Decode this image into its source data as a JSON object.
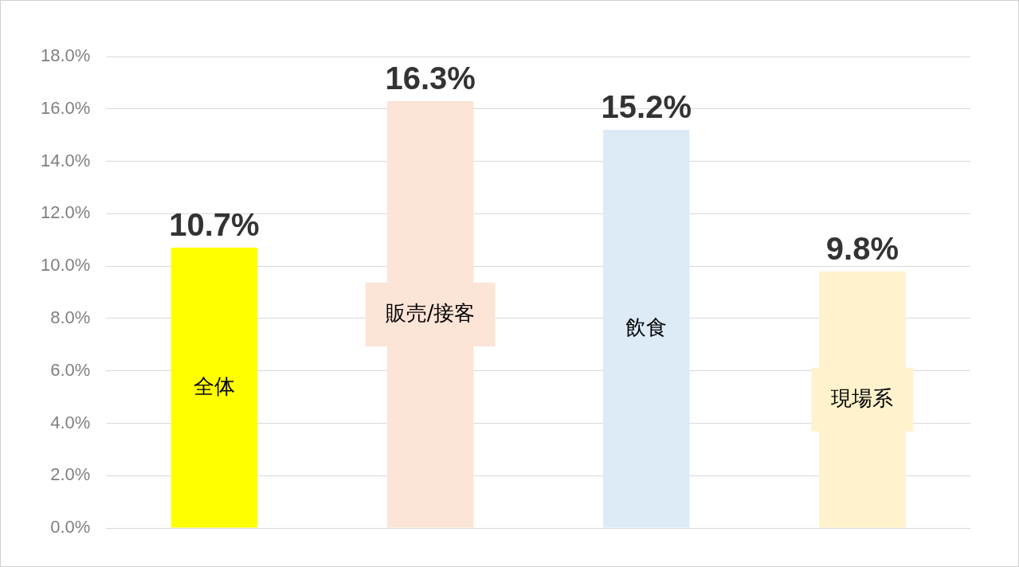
{
  "chart_data": {
    "type": "bar",
    "categories": [
      "全体",
      "販売/接客",
      "飲食",
      "現場系"
    ],
    "values": [
      10.7,
      16.3,
      15.2,
      9.8
    ],
    "colors": [
      "#ffff00",
      "#fce4d6",
      "#ddebf7",
      "#fff2cc"
    ],
    "value_labels": [
      "10.7%",
      "16.3%",
      "15.2%",
      "9.8%"
    ],
    "ylim": [
      0,
      18
    ],
    "yticks": [
      {
        "value": 0,
        "label": "0.0%"
      },
      {
        "value": 2,
        "label": "2.0%"
      },
      {
        "value": 4,
        "label": "4.0%"
      },
      {
        "value": 6,
        "label": "6.0%"
      },
      {
        "value": 8,
        "label": "8.0%"
      },
      {
        "value": 10,
        "label": "10.0%"
      },
      {
        "value": 12,
        "label": "12.0%"
      },
      {
        "value": 14,
        "label": "14.0%"
      },
      {
        "value": 16,
        "label": "16.0%"
      },
      {
        "value": 18,
        "label": "18.0%"
      }
    ],
    "grid": "y",
    "legend": false
  }
}
